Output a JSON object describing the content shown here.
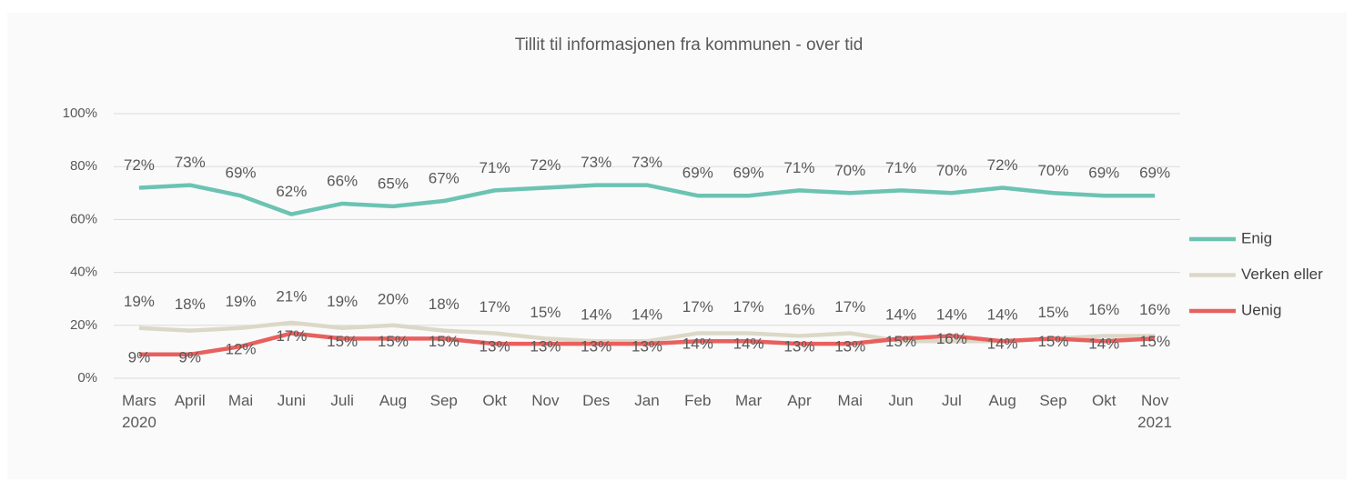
{
  "chart_data": {
    "type": "line",
    "title": "Tillit til informasjonen fra kommunen - over tid",
    "categories": [
      "Mars\n2020",
      "April",
      "Mai",
      "Juni",
      "Juli",
      "Aug",
      "Sep",
      "Okt",
      "Nov",
      "Des",
      "Jan",
      "Feb",
      "Mar",
      "Apr",
      "Mai",
      "Jun",
      "Jul",
      "Aug",
      "Sep",
      "Okt",
      "Nov\n2021"
    ],
    "series": [
      {
        "name": "Enig",
        "color": "#6cc3b3",
        "values": [
          72,
          73,
          69,
          62,
          66,
          65,
          67,
          71,
          72,
          73,
          73,
          69,
          69,
          71,
          70,
          71,
          70,
          72,
          70,
          69,
          69
        ],
        "value_labels": [
          "72%",
          "73%",
          "69%",
          "62%",
          "66%",
          "65%",
          "67%",
          "71%",
          "72%",
          "73%",
          "73%",
          "69%",
          "69%",
          "71%",
          "70%",
          "71%",
          "70%",
          "72%",
          "70%",
          "69%",
          "69%"
        ]
      },
      {
        "name": "Verken eller",
        "color": "#dcd8c8",
        "values": [
          19,
          18,
          19,
          21,
          19,
          20,
          18,
          17,
          15,
          14,
          14,
          17,
          17,
          16,
          17,
          14,
          14,
          14,
          15,
          16,
          16
        ],
        "value_labels": [
          "19%",
          "18%",
          "19%",
          "21%",
          "19%",
          "20%",
          "18%",
          "17%",
          "15%",
          "14%",
          "14%",
          "17%",
          "17%",
          "16%",
          "17%",
          "14%",
          "14%",
          "14%",
          "15%",
          "16%",
          "16%"
        ]
      },
      {
        "name": "Uenig",
        "color": "#e8605e",
        "values": [
          9,
          9,
          12,
          17,
          15,
          15,
          15,
          13,
          13,
          13,
          13,
          14,
          14,
          13,
          13,
          15,
          16,
          14,
          15,
          14,
          15
        ],
        "value_labels": [
          "9%",
          "9%",
          "12%",
          "17%",
          "15%",
          "15%",
          "15%",
          "13%",
          "13%",
          "13%",
          "13%",
          "14%",
          "14%",
          "13%",
          "13%",
          "15%",
          "16%",
          "14%",
          "15%",
          "14%",
          "15%"
        ]
      }
    ],
    "ylim": [
      0,
      100
    ],
    "yticks": [
      {
        "value": 0,
        "label": "0%"
      },
      {
        "value": 20,
        "label": "20%"
      },
      {
        "value": 40,
        "label": "40%"
      },
      {
        "value": 60,
        "label": "60%"
      },
      {
        "value": 80,
        "label": "80%"
      },
      {
        "value": 100,
        "label": "100%"
      }
    ],
    "grid": true,
    "legend": "right"
  }
}
